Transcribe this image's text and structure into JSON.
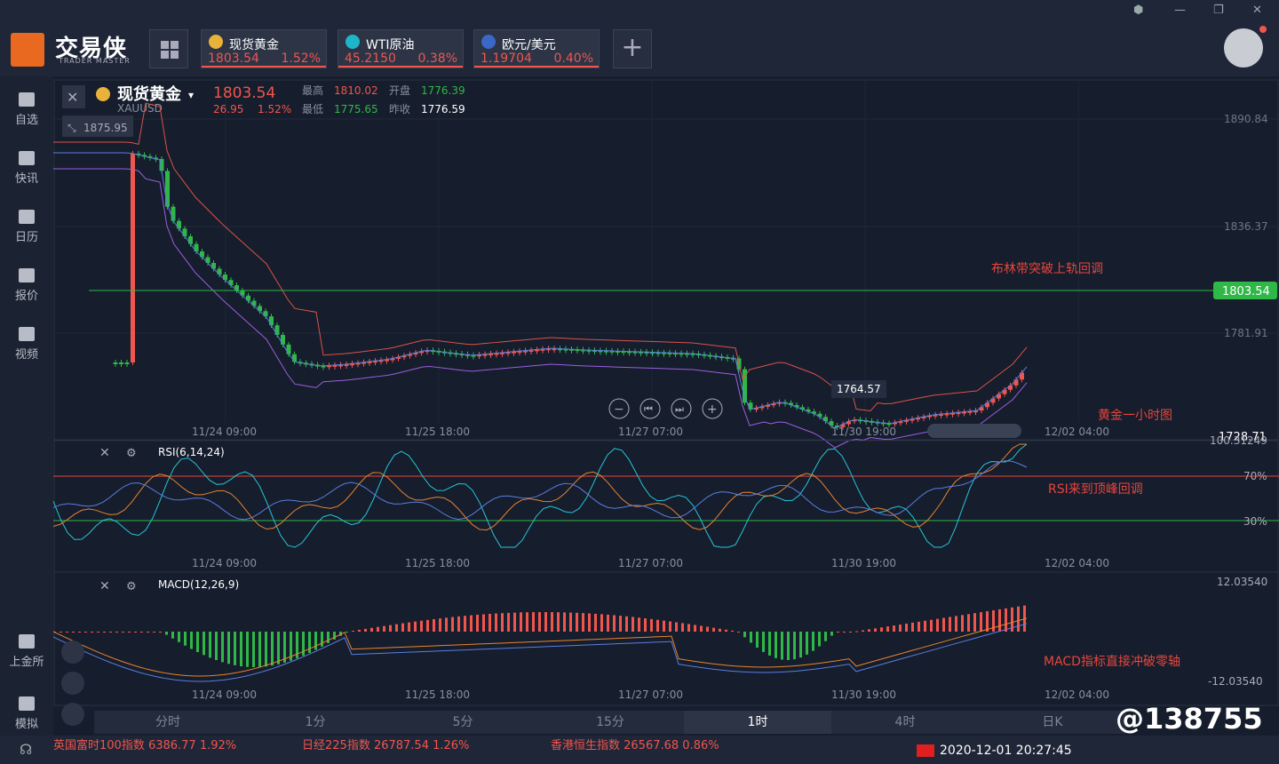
{
  "app": {
    "logo_text": "交易侠",
    "logo_sub": "TRADER MASTER"
  },
  "window": {
    "min": "—",
    "max": "❐",
    "close": "✕",
    "skin": "⬢"
  },
  "tickers": [
    {
      "name": "现货黄金",
      "price": "1803.54",
      "change": "1.52%",
      "icon_color": "#e9b23a"
    },
    {
      "name": "WTI原油",
      "price": "45.2150",
      "change": "0.38%",
      "icon_color": "#1fb5c9"
    },
    {
      "name": "欧元/美元",
      "price": "1.19704",
      "change": "0.40%",
      "icon_color": "#3b67c8"
    }
  ],
  "add_label": "+",
  "sidebar": [
    {
      "label": "自选",
      "icon": "bookmark-icon"
    },
    {
      "label": "快讯",
      "icon": "news-icon"
    },
    {
      "label": "日历",
      "icon": "calendar-icon"
    },
    {
      "label": "报价",
      "icon": "quote-chart-icon"
    },
    {
      "label": "视频",
      "icon": "video-icon"
    },
    {
      "label": "上金所",
      "icon": "exchange-icon"
    },
    {
      "label": "模拟",
      "icon": "simulate-icon"
    }
  ],
  "header": {
    "name": "现货黄金",
    "code": "XAUUSD",
    "price": "1803.54",
    "chg": "26.95",
    "pct": "1.52%",
    "high_l": "最高",
    "high": "1810.02",
    "open_l": "开盘",
    "open": "1776.39",
    "low_l": "最低",
    "low": "1775.65",
    "prev_l": "昨收",
    "prev": "1776.59"
  },
  "colors": {
    "up": "#f0564d",
    "down": "#2fb847",
    "bg": "#161d2c",
    "grid": "#252e40"
  },
  "chart_data": [
    {
      "type": "candlestick",
      "name": "main",
      "y_ticks": [
        "1890.84",
        "1836.37",
        "1781.91",
        "1728.71"
      ],
      "x_ticks": [
        "11/24 09:00",
        "11/25 18:00",
        "11/27 07:00",
        "11/30 19:00",
        "12/02 04:00"
      ],
      "ylim": [
        1728.71,
        1890.84
      ],
      "last_price": "1803.54",
      "max_label": "1875.95",
      "min_label": "1764.57",
      "annotations": [
        "布林带突破上轨回调",
        "黄金一小时图"
      ],
      "overlays": [
        "Bollinger upper",
        "Bollinger middle",
        "Bollinger lower"
      ],
      "extra_label": "1728.71"
    },
    {
      "type": "line",
      "name": "RSI(6,14,24)",
      "levels": [
        "70%",
        "30%"
      ],
      "top_label": "100.31249",
      "x_ticks": [
        "11/24 09:00",
        "11/25 18:00",
        "11/27 07:00",
        "11/30 19:00",
        "12/02 04:00"
      ],
      "annotation": "RSI来到顶峰回调"
    },
    {
      "type": "bar",
      "name": "MACD(12,26,9)",
      "top_label": "12.03540",
      "bottom_label": "-12.03540",
      "x_ticks": [
        "11/24 09:00",
        "11/25 18:00",
        "11/27 07:00",
        "11/30 19:00",
        "12/02 04:00"
      ],
      "annotation": "MACD指标直接冲破零轴"
    }
  ],
  "periods": [
    "分时",
    "1分",
    "5分",
    "15分",
    "1时",
    "4时",
    "日K"
  ],
  "active_period": "1时",
  "bottom": {
    "ticker1": "英国富时100指数 6386.77 1.92%",
    "ticker2": "日经225指数 26787.54 1.26%",
    "ticker3": "香港恒生指数 26567.68 0.86%",
    "datetime": "2020-12-01 20:27:45",
    "watermark": "@138755"
  }
}
